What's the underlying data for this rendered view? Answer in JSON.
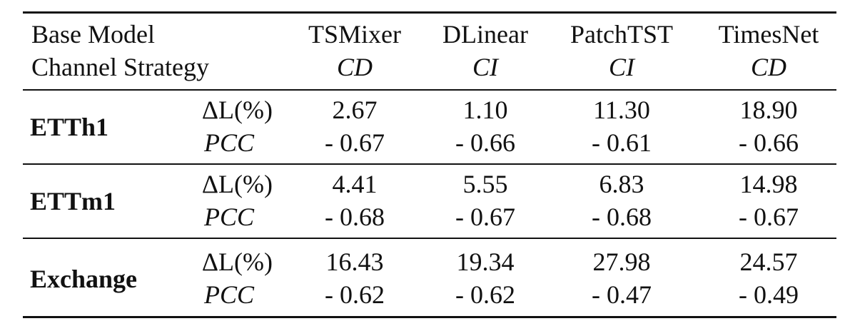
{
  "header": {
    "row1_label": "Base Model",
    "row2_label": "Channel Strategy",
    "models": [
      {
        "name": "TSMixer",
        "strategy": "CD"
      },
      {
        "name": "DLinear",
        "strategy": "CI"
      },
      {
        "name": "PatchTST",
        "strategy": "CI"
      },
      {
        "name": "TimesNet",
        "strategy": "CD"
      }
    ]
  },
  "metrics": {
    "delta_loss": "ΔL(%)",
    "pcc": "PCC"
  },
  "rows": [
    {
      "dataset": "ETTh1",
      "delta": [
        "2.67",
        "1.10",
        "11.30",
        "18.90"
      ],
      "pcc": [
        "- 0.67",
        "- 0.66",
        "- 0.61",
        "- 0.66"
      ]
    },
    {
      "dataset": "ETTm1",
      "delta": [
        "4.41",
        "5.55",
        "6.83",
        "14.98"
      ],
      "pcc": [
        "- 0.68",
        "- 0.67",
        "- 0.68",
        "- 0.67"
      ]
    },
    {
      "dataset": "Exchange",
      "delta": [
        "16.43",
        "19.34",
        "27.98",
        "24.57"
      ],
      "pcc": [
        "- 0.62",
        "- 0.62",
        "- 0.47",
        "- 0.49"
      ]
    }
  ]
}
